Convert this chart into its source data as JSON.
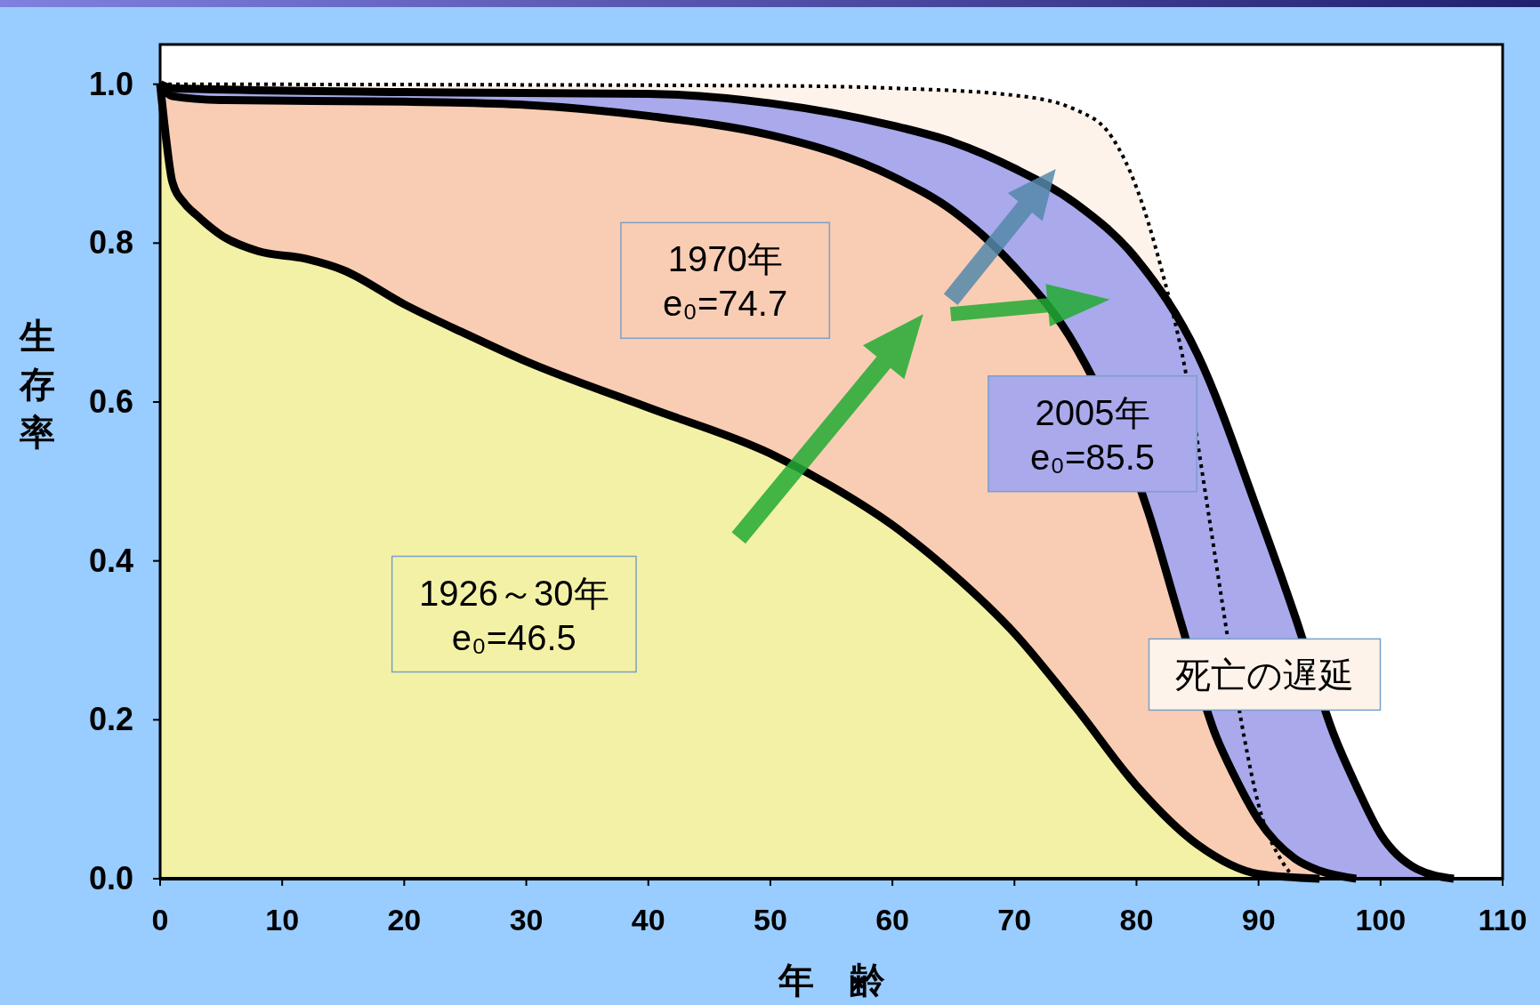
{
  "chart_data": {
    "type": "area",
    "xlabel": "年　齢",
    "ylabel": "生存率",
    "xlim": [
      0,
      110
    ],
    "ylim": [
      0,
      1.05
    ],
    "xticks": [
      0,
      10,
      20,
      30,
      40,
      50,
      60,
      70,
      80,
      90,
      100,
      110
    ],
    "yticks": [
      {
        "value": 0,
        "label": "0.0"
      },
      {
        "value": 0.2,
        "label": "0.2"
      },
      {
        "value": 0.4,
        "label": "0.4"
      },
      {
        "value": 0.6,
        "label": "0.6"
      },
      {
        "value": 0.8,
        "label": "0.8"
      },
      {
        "value": 1,
        "label": "1.0"
      }
    ],
    "grid": false,
    "series": [
      {
        "color": "#f3f1a6",
        "x": [
          0,
          0.5,
          1,
          2,
          3,
          5,
          8,
          12,
          15,
          20,
          25,
          30,
          40,
          50,
          55,
          60,
          65,
          70,
          75,
          80,
          85,
          90,
          95
        ],
        "values": [
          1,
          0.93,
          0.877,
          0.85,
          0.835,
          0.81,
          0.79,
          0.78,
          0.766,
          0.723,
          0.686,
          0.651,
          0.593,
          0.535,
          0.494,
          0.445,
          0.383,
          0.309,
          0.216,
          0.117,
          0.043,
          0.006,
          0
        ]
      },
      {
        "color": "#f9cdb4",
        "x": [
          0,
          1,
          5,
          20,
          30,
          40,
          50,
          55,
          60,
          65,
          70,
          75,
          81,
          83.5,
          86.5,
          88,
          90,
          93,
          95,
          98
        ],
        "values": [
          1,
          0.985,
          0.98,
          0.978,
          0.974,
          0.96,
          0.936,
          0.915,
          0.884,
          0.84,
          0.77,
          0.67,
          0.46,
          0.33,
          0.18,
          0.13,
          0.074,
          0.025,
          0.01,
          0
        ]
      },
      {
        "color": "#a9a9ec",
        "x": [
          0,
          1,
          20,
          40,
          50,
          60,
          65,
          70,
          75,
          80,
          85,
          90,
          93,
          96.2,
          98,
          100,
          103,
          106
        ],
        "values": [
          1,
          0.995,
          0.99,
          0.988,
          0.976,
          0.948,
          0.927,
          0.894,
          0.85,
          0.78,
          0.66,
          0.46,
          0.33,
          0.18,
          0.117,
          0.056,
          0.012,
          0
        ]
      },
      {
        "color": "#fdf3ea",
        "line_style": "dotted",
        "x": [
          0,
          50,
          60,
          70,
          75,
          78,
          80,
          82,
          84,
          86,
          87.2,
          88.8,
          90,
          92,
          93
        ],
        "values": [
          1,
          0.998,
          0.995,
          0.986,
          0.968,
          0.933,
          0.87,
          0.77,
          0.64,
          0.45,
          0.33,
          0.18,
          0.093,
          0.02,
          0
        ]
      }
    ],
    "annotations": [
      "1926～30年\ne₀=46.5",
      "1970年\ne₀=74.7",
      "2005年\ne₀=85.5",
      "死亡の遅延"
    ]
  }
}
